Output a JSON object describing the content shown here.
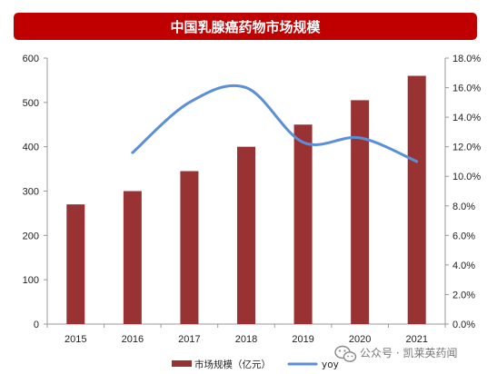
{
  "chart_data": {
    "type": "bar+line",
    "title": "中国乳腺癌药物市场规模",
    "categories": [
      "2015",
      "2016",
      "2017",
      "2018",
      "2019",
      "2020",
      "2021"
    ],
    "series": [
      {
        "name": "市场规模（亿元）",
        "type": "bar",
        "axis": "left",
        "values": [
          270,
          300,
          345,
          400,
          450,
          505,
          560
        ]
      },
      {
        "name": "yoy",
        "type": "line",
        "axis": "right",
        "values": [
          null,
          11.6,
          15.0,
          16.0,
          12.3,
          12.6,
          11.0
        ]
      }
    ],
    "y_left": {
      "min": 0,
      "max": 600,
      "ticks": [
        "0",
        "100",
        "200",
        "300",
        "400",
        "500",
        "600"
      ]
    },
    "y_right": {
      "min": 0,
      "max": 18,
      "ticks": [
        "0.0%",
        "2.0%",
        "4.0%",
        "6.0%",
        "8.0%",
        "10.0%",
        "12.0%",
        "14.0%",
        "16.0%",
        "18.0%"
      ]
    },
    "grid": false,
    "legend_position": "bottom",
    "colors": {
      "bar": "#993333",
      "line": "#5b8fd6",
      "title_bg": "#c00000",
      "axis": "#999999"
    }
  },
  "watermark": {
    "text": "公众号 · 凯莱英药闻",
    "icon": "wechat-icon"
  }
}
